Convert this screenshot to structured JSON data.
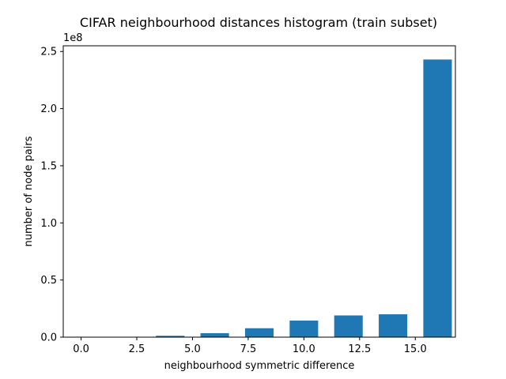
{
  "chart_data": {
    "type": "bar",
    "title": "CIFAR neighbourhood distances histogram (train subset)",
    "xlabel": "neighbourhood symmetric difference",
    "ylabel": "number of node pairs",
    "y_offset_label": "1e8",
    "bar_color": "#1f77b4",
    "xlim": [
      -0.8,
      16.8
    ],
    "ylim": [
      0,
      2.55
    ],
    "x_ticks": [
      0.0,
      2.5,
      5.0,
      7.5,
      10.0,
      12.5,
      15.0
    ],
    "x_tick_labels": [
      "0.0",
      "2.5",
      "5.0",
      "7.5",
      "10.0",
      "12.5",
      "15.0"
    ],
    "y_ticks": [
      0.0,
      0.5,
      1.0,
      1.5,
      2.0,
      2.5
    ],
    "y_tick_labels": [
      "0.0",
      "0.5",
      "1.0",
      "1.5",
      "2.0",
      "2.5"
    ],
    "bar_width": 1.28,
    "x": [
      0,
      2,
      4,
      6,
      8,
      10,
      12,
      14,
      16
    ],
    "values": [
      0.0001,
      0.002,
      0.012,
      0.035,
      0.078,
      0.145,
      0.19,
      0.2,
      2.43
    ],
    "grid": false,
    "legend": "none"
  }
}
